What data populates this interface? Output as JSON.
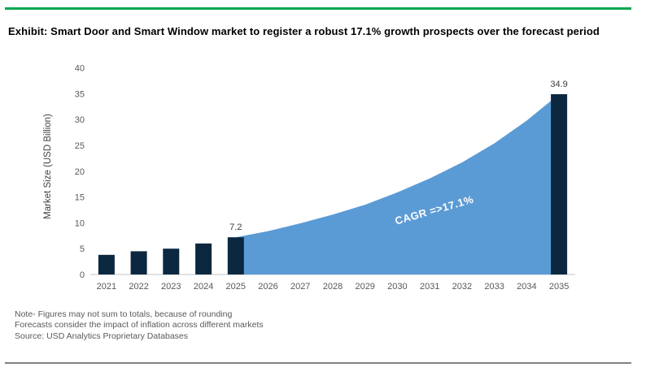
{
  "title": "Exhibit: Smart Door and Smart Window market to register a robust 17.1% growth prospects over the forecast period",
  "colors": {
    "accent_green": "#00a650",
    "bar_dark_navy": "#0c2840",
    "area_light_blue": "#5b9bd5",
    "baseline_gray": "#d9d9d9",
    "axis_text_gray": "#595959",
    "value_label_dark": "#3b3b3b",
    "bottom_rule_gray": "#808080",
    "annotation_white": "#ffffff"
  },
  "notes": [
    "Note- Figures may not sum to totals, because of rounding",
    "Forecasts consider the impact of inflation across different markets",
    "Source: USD Analytics Proprietary Databases"
  ],
  "chart_data": {
    "type": "bar+area combo",
    "categories": [
      "2021",
      "2022",
      "2023",
      "2024",
      "2025",
      "2026",
      "2027",
      "2028",
      "2029",
      "2030",
      "2031",
      "2032",
      "2033",
      "2034",
      "2035"
    ],
    "series": [
      {
        "name": "Market size bars (USD Billion)",
        "type": "bar",
        "color": "#0c2840",
        "values": [
          3.8,
          4.5,
          5.0,
          6.0,
          7.2,
          null,
          null,
          null,
          null,
          null,
          null,
          null,
          null,
          null,
          34.9
        ]
      },
      {
        "name": "Forecast growth area",
        "type": "area",
        "color": "#5b9bd5",
        "values": [
          null,
          null,
          null,
          null,
          7.2,
          8.4,
          9.9,
          11.6,
          13.5,
          15.9,
          18.6,
          21.7,
          25.4,
          29.8,
          34.9
        ]
      }
    ],
    "title": "",
    "xlabel": "",
    "ylabel": "Market Size (USD Billion)",
    "ylim": [
      0,
      40
    ],
    "ytick_step": 5,
    "grid": "off",
    "legend": "none",
    "data_labels": [
      {
        "category": "2025",
        "value": 7.2,
        "text": "7.2"
      },
      {
        "category": "2035",
        "value": 34.9,
        "text": "34.9"
      }
    ],
    "annotation": {
      "text": "CAGR =>17.1%"
    }
  }
}
